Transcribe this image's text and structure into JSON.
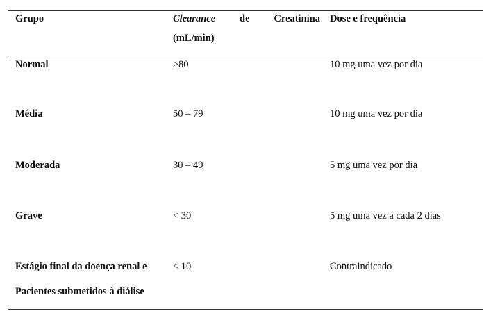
{
  "table": {
    "header": {
      "col1": "Grupo",
      "col2_word1": "Clearance",
      "col2_word2": "de",
      "col2_word3": "Creatinina",
      "col2_unit": "(mL/min)",
      "col3": "Dose e frequência"
    },
    "rows": [
      {
        "grupo": "Normal",
        "clearance": "≥80",
        "dose": "10 mg uma vez por dia"
      },
      {
        "grupo": "Média",
        "clearance": "50 – 79",
        "dose": "10 mg uma vez por dia"
      },
      {
        "grupo": "Moderada",
        "clearance": "30 – 49",
        "dose": "5 mg uma vez por dia"
      },
      {
        "grupo": "Grave",
        "clearance": "< 30",
        "dose": "5 mg uma vez a cada 2 dias"
      },
      {
        "grupo_line1": "Estágio final da doença renal e",
        "grupo_line2": "Pacientes submetidos à diálise",
        "clearance": "< 10",
        "dose": "Contraindicado"
      }
    ]
  }
}
